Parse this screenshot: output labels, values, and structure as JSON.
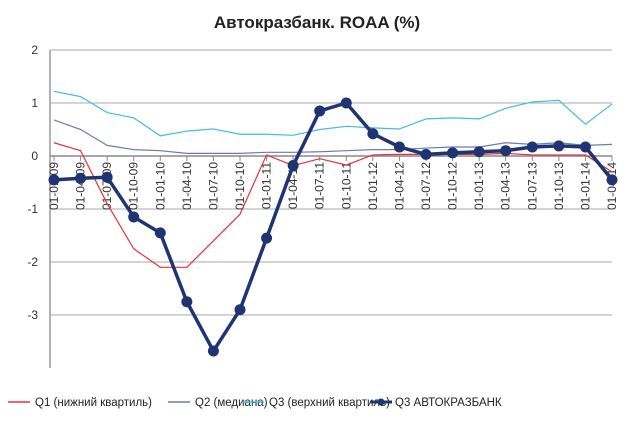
{
  "chart_data": {
    "type": "line",
    "title": "Автокразбанк. ROAA (%)",
    "xlabel": "",
    "ylabel": "",
    "ylim": [
      -4,
      2
    ],
    "yticks": [
      2,
      1,
      0,
      -1,
      -2,
      -3
    ],
    "grid": true,
    "legend_position": "bottom",
    "categories": [
      "01-01-09",
      "01-04-09",
      "01-07-09",
      "01-10-09",
      "01-01-10",
      "01-04-10",
      "01-07-10",
      "01-10-10",
      "01-01-11",
      "01-04-11",
      "01-07-11",
      "01-10-11",
      "01-01-12",
      "01-04-12",
      "01-07-12",
      "01-10-12",
      "01-01-13",
      "01-04-13",
      "01-07-13",
      "01-10-13",
      "01-01-14",
      "01-04-14"
    ],
    "series": [
      {
        "name": "Q1 (нижний квартиль)",
        "color": "#e8333a",
        "width": 1.2,
        "markers": false,
        "values": [
          0.25,
          0.1,
          -0.9,
          -1.75,
          -2.1,
          -2.1,
          -1.6,
          -1.1,
          0.02,
          -0.18,
          -0.05,
          -0.17,
          0.02,
          0.03,
          0.03,
          0.03,
          0.03,
          0.05,
          0.02,
          0.02,
          0.02,
          -0.3
        ]
      },
      {
        "name": "Q2 (медиана)",
        "color": "#6b7bb0",
        "width": 1.2,
        "markers": false,
        "values": [
          0.68,
          0.5,
          0.2,
          0.12,
          0.1,
          0.05,
          0.05,
          0.05,
          0.07,
          0.07,
          0.08,
          0.1,
          0.12,
          0.12,
          0.15,
          0.17,
          0.17,
          0.25,
          0.22,
          0.25,
          0.2,
          0.22
        ]
      },
      {
        "name": "Q3 (верхний квартиль)",
        "color": "#3fbde8",
        "width": 1.2,
        "markers": false,
        "values": [
          1.22,
          1.12,
          0.82,
          0.72,
          0.38,
          0.47,
          0.51,
          0.41,
          0.41,
          0.39,
          0.5,
          0.56,
          0.53,
          0.51,
          0.7,
          0.72,
          0.7,
          0.9,
          1.02,
          1.05,
          0.6,
          0.98
        ]
      },
      {
        "name": "Q3 АВТОКРАЗБАНК",
        "color": "#1f3473",
        "width": 3.5,
        "markers": true,
        "values": [
          -0.45,
          -0.42,
          -0.4,
          -1.15,
          -1.45,
          -2.75,
          -3.68,
          -2.9,
          -1.55,
          -0.18,
          0.85,
          1.0,
          0.42,
          0.17,
          0.03,
          0.06,
          0.08,
          0.1,
          0.17,
          0.19,
          0.17,
          -0.45
        ]
      }
    ]
  }
}
